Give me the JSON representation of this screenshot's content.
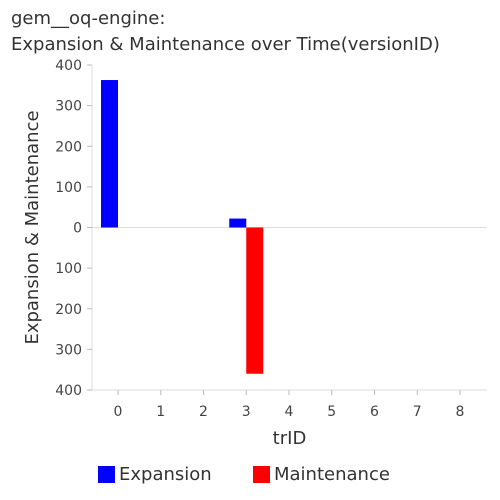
{
  "chart_data": {
    "type": "bar",
    "title_line1": "gem__oq-engine:",
    "title_line2": "Expansion & Maintenance over Time(versionID)",
    "xlabel": "trID",
    "ylabel": "Expansion & Maintenance",
    "x": [
      0,
      1,
      2,
      3,
      4,
      5,
      6,
      7,
      8
    ],
    "x_tick_labels": [
      "0",
      "1",
      "2",
      "3",
      "4",
      "5",
      "6",
      "7",
      "8"
    ],
    "y_tick_labels": [
      "400",
      "300",
      "200",
      "100",
      "0",
      "100",
      "200",
      "300",
      "400"
    ],
    "ylim": [
      -400,
      400
    ],
    "grid": false,
    "legend_position": "bottom",
    "series": [
      {
        "name": "Expansion",
        "color": "#0000ff",
        "values": [
          363,
          0,
          0,
          22,
          0,
          0,
          0,
          0,
          0
        ]
      },
      {
        "name": "Maintenance",
        "color": "#ff0000",
        "values": [
          0,
          0,
          0,
          -360,
          0,
          0,
          0,
          0,
          0
        ]
      }
    ]
  }
}
